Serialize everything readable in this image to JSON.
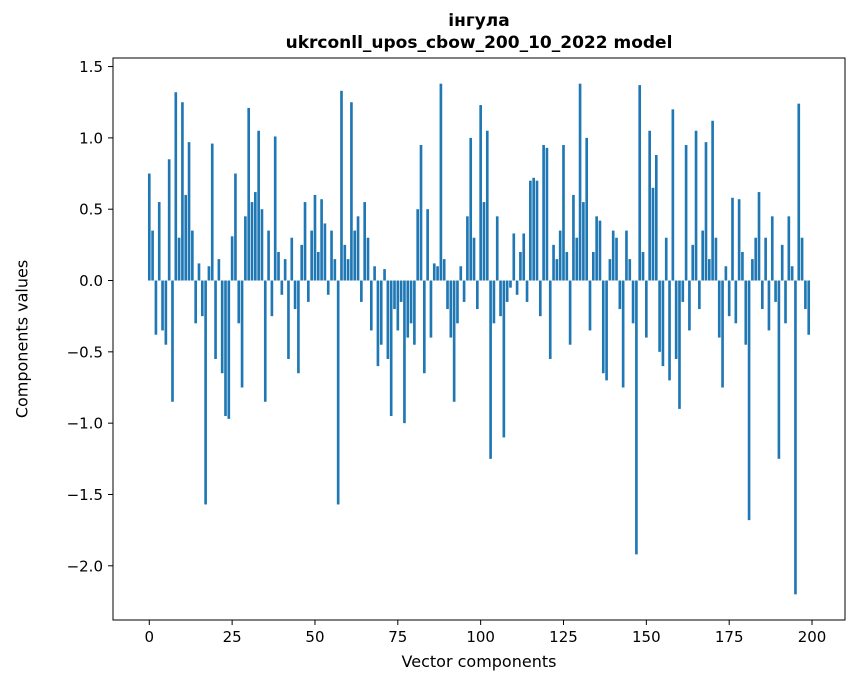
{
  "figure": {
    "title_line1": "інгула",
    "title_line2": "ukrconll_upos_cbow_200_10_2022 model",
    "xlabel": "Vector components",
    "ylabel": "Components values"
  },
  "chart_data": {
    "type": "bar",
    "title": "інгула",
    "subtitle": "ukrconll_upos_cbow_200_10_2022 model",
    "xlabel": "Vector components",
    "ylabel": "Components values",
    "bar_color": "#1f77b4",
    "axis_color": "#000000",
    "grid": false,
    "legend": false,
    "xlim": [
      -10.95,
      209.95
    ],
    "ylim": [
      -2.38,
      1.56
    ],
    "xticks": [
      0,
      25,
      50,
      75,
      100,
      125,
      150,
      175,
      200
    ],
    "xtick_labels": [
      "0",
      "25",
      "50",
      "75",
      "100",
      "125",
      "150",
      "175",
      "200"
    ],
    "yticks": [
      1.5,
      1.0,
      0.5,
      0.0,
      -0.5,
      -1.0,
      -1.5,
      -2.0
    ],
    "ytick_labels": [
      "1.5",
      "1.0",
      "0.5",
      "0.0",
      "−0.5",
      "−1.0",
      "−1.5",
      "−2.0"
    ],
    "values": [
      0.75,
      0.35,
      -0.38,
      0.55,
      -0.35,
      -0.45,
      0.85,
      -0.85,
      1.32,
      0.3,
      1.25,
      0.6,
      0.97,
      0.35,
      -0.3,
      0.12,
      -0.25,
      -1.57,
      0.1,
      0.96,
      -0.55,
      0.15,
      -0.65,
      -0.95,
      -0.97,
      0.31,
      0.75,
      -0.3,
      -0.75,
      0.45,
      1.21,
      0.55,
      0.62,
      1.05,
      0.5,
      -0.85,
      0.35,
      -0.25,
      1.01,
      0.2,
      -0.1,
      0.15,
      -0.55,
      0.3,
      -0.2,
      -0.65,
      0.25,
      0.55,
      -0.15,
      0.35,
      0.6,
      0.2,
      0.57,
      0.4,
      -0.1,
      0.35,
      0.15,
      -1.57,
      1.33,
      0.25,
      0.15,
      1.25,
      0.35,
      0.45,
      -0.15,
      0.55,
      0.3,
      -0.35,
      0.1,
      -0.6,
      -0.45,
      0.08,
      -0.55,
      -0.95,
      -0.2,
      -0.35,
      -0.15,
      -1.0,
      -0.4,
      -0.3,
      -0.45,
      0.5,
      0.95,
      -0.65,
      0.5,
      -0.4,
      0.12,
      0.1,
      1.38,
      0.15,
      -0.2,
      -0.4,
      -0.85,
      -0.3,
      0.1,
      -0.15,
      0.45,
      1.0,
      0.3,
      -0.2,
      1.23,
      0.55,
      1.05,
      -1.25,
      -0.3,
      0.45,
      -0.25,
      -1.1,
      -0.15,
      -0.05,
      0.33,
      -0.1,
      0.2,
      0.33,
      -0.15,
      0.7,
      0.72,
      0.7,
      -0.25,
      0.95,
      0.93,
      -0.55,
      0.25,
      0.15,
      0.35,
      0.95,
      0.2,
      -0.45,
      0.6,
      0.3,
      1.38,
      0.55,
      1.0,
      -0.35,
      0.2,
      0.45,
      0.42,
      -0.65,
      -0.7,
      0.15,
      0.35,
      0.3,
      -0.2,
      -0.75,
      0.35,
      0.15,
      -0.3,
      -1.92,
      1.37,
      0.2,
      -0.4,
      1.05,
      0.65,
      0.88,
      -0.5,
      -0.6,
      0.3,
      -0.7,
      1.2,
      -0.55,
      -0.9,
      -0.15,
      0.95,
      -0.35,
      0.25,
      1.05,
      -0.2,
      0.35,
      0.97,
      0.15,
      1.12,
      0.3,
      -0.4,
      -0.75,
      0.1,
      -0.25,
      0.58,
      -0.3,
      0.57,
      0.2,
      -0.45,
      -1.68,
      0.15,
      0.3,
      0.62,
      -0.2,
      0.3,
      -0.35,
      0.45,
      -0.15,
      -1.25,
      0.25,
      -0.3,
      0.45,
      0.1,
      -2.2,
      1.24,
      0.3,
      -0.2,
      -0.38
    ]
  }
}
